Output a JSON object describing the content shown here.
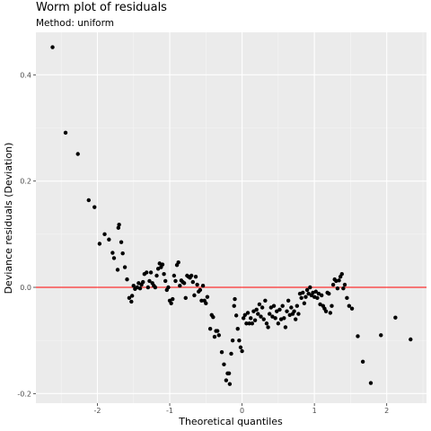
{
  "chart_data": {
    "type": "scatter",
    "title": "Worm plot of residuals",
    "subtitle": "Method: uniform",
    "xlabel": "Theoretical quantiles",
    "ylabel": "Deviance residuals (Deviation)",
    "xlim": [
      -2.85,
      2.55
    ],
    "ylim": [
      -0.218,
      0.48
    ],
    "x_ticks": [
      -2,
      -1,
      0,
      1,
      2
    ],
    "y_ticks": [
      -0.2,
      0.0,
      0.2,
      0.4
    ],
    "x_tick_labels": [
      "-2",
      "-1",
      "0",
      "1",
      "2"
    ],
    "y_tick_labels": [
      "-0.2",
      "0.0",
      "0.2",
      "0.4"
    ],
    "grid": true,
    "reference_line": {
      "y": 0,
      "color": "#ff0000"
    },
    "point_color": "#000000",
    "points": [
      [
        -2.62,
        0.452
      ],
      [
        -2.44,
        0.291
      ],
      [
        -2.27,
        0.251
      ],
      [
        -2.12,
        0.164
      ],
      [
        -2.04,
        0.151
      ],
      [
        -1.97,
        0.082
      ],
      [
        -1.9,
        0.1
      ],
      [
        -1.84,
        0.09
      ],
      [
        -1.79,
        0.065
      ],
      [
        -1.77,
        0.055
      ],
      [
        -1.72,
        0.033
      ],
      [
        -1.71,
        0.112
      ],
      [
        -1.7,
        0.118
      ],
      [
        -1.67,
        0.085
      ],
      [
        -1.65,
        0.064
      ],
      [
        -1.62,
        0.038
      ],
      [
        -1.59,
        0.015
      ],
      [
        -1.56,
        -0.02
      ],
      [
        -1.53,
        -0.027
      ],
      [
        -1.52,
        -0.016
      ],
      [
        -1.5,
        0.003
      ],
      [
        -1.48,
        -0.003
      ],
      [
        -1.45,
        0.0
      ],
      [
        -1.43,
        0.008
      ],
      [
        -1.41,
        -0.002
      ],
      [
        -1.39,
        0.005
      ],
      [
        -1.37,
        0.01
      ],
      [
        -1.35,
        0.025
      ],
      [
        -1.32,
        0.028
      ],
      [
        -1.3,
        0.0
      ],
      [
        -1.28,
        0.012
      ],
      [
        -1.26,
        0.028
      ],
      [
        -1.24,
        0.008
      ],
      [
        -1.22,
        0.003
      ],
      [
        -1.2,
        0.0
      ],
      [
        -1.18,
        0.022
      ],
      [
        -1.16,
        0.035
      ],
      [
        -1.14,
        0.045
      ],
      [
        -1.12,
        0.038
      ],
      [
        -1.1,
        0.043
      ],
      [
        -1.08,
        0.025
      ],
      [
        -1.06,
        0.012
      ],
      [
        -1.04,
        -0.005
      ],
      [
        -1.02,
        0.0
      ],
      [
        -1.0,
        -0.025
      ],
      [
        -0.98,
        -0.03
      ],
      [
        -0.96,
        -0.022
      ],
      [
        -0.94,
        0.022
      ],
      [
        -0.92,
        0.012
      ],
      [
        -0.9,
        0.042
      ],
      [
        -0.88,
        0.047
      ],
      [
        -0.86,
        0.003
      ],
      [
        -0.84,
        0.013
      ],
      [
        -0.82,
        0.01
      ],
      [
        -0.8,
        0.008
      ],
      [
        -0.78,
        -0.02
      ],
      [
        -0.76,
        0.022
      ],
      [
        -0.74,
        0.02
      ],
      [
        -0.72,
        0.018
      ],
      [
        -0.7,
        0.022
      ],
      [
        -0.68,
        0.01
      ],
      [
        -0.66,
        -0.015
      ],
      [
        -0.64,
        0.02
      ],
      [
        -0.62,
        0.005
      ],
      [
        -0.6,
        -0.008
      ],
      [
        -0.58,
        -0.005
      ],
      [
        -0.56,
        -0.025
      ],
      [
        -0.54,
        0.003
      ],
      [
        -0.52,
        -0.025
      ],
      [
        -0.5,
        -0.03
      ],
      [
        -0.48,
        -0.018
      ],
      [
        -0.44,
        -0.078
      ],
      [
        -0.42,
        -0.052
      ],
      [
        -0.4,
        -0.056
      ],
      [
        -0.38,
        -0.093
      ],
      [
        -0.36,
        -0.082
      ],
      [
        -0.34,
        -0.082
      ],
      [
        -0.32,
        -0.09
      ],
      [
        -0.28,
        -0.122
      ],
      [
        -0.25,
        -0.145
      ],
      [
        -0.22,
        -0.175
      ],
      [
        -0.2,
        -0.162
      ],
      [
        -0.18,
        -0.162
      ],
      [
        -0.17,
        -0.182
      ],
      [
        -0.15,
        -0.125
      ],
      [
        -0.13,
        -0.1
      ],
      [
        -0.11,
        -0.035
      ],
      [
        -0.1,
        -0.022
      ],
      [
        -0.08,
        -0.053
      ],
      [
        -0.06,
        -0.078
      ],
      [
        -0.04,
        -0.1
      ],
      [
        -0.02,
        -0.113
      ],
      [
        0.0,
        -0.12
      ],
      [
        0.02,
        -0.058
      ],
      [
        0.04,
        -0.052
      ],
      [
        0.06,
        -0.068
      ],
      [
        0.08,
        -0.048
      ],
      [
        0.1,
        -0.068
      ],
      [
        0.12,
        -0.058
      ],
      [
        0.14,
        -0.068
      ],
      [
        0.16,
        -0.045
      ],
      [
        0.18,
        -0.062
      ],
      [
        0.2,
        -0.042
      ],
      [
        0.22,
        -0.05
      ],
      [
        0.24,
        -0.032
      ],
      [
        0.26,
        -0.055
      ],
      [
        0.28,
        -0.038
      ],
      [
        0.3,
        -0.06
      ],
      [
        0.32,
        -0.025
      ],
      [
        0.34,
        -0.068
      ],
      [
        0.36,
        -0.075
      ],
      [
        0.38,
        -0.05
      ],
      [
        0.4,
        -0.038
      ],
      [
        0.42,
        -0.055
      ],
      [
        0.44,
        -0.035
      ],
      [
        0.46,
        -0.058
      ],
      [
        0.48,
        -0.045
      ],
      [
        0.5,
        -0.068
      ],
      [
        0.52,
        -0.042
      ],
      [
        0.54,
        -0.06
      ],
      [
        0.56,
        -0.035
      ],
      [
        0.58,
        -0.058
      ],
      [
        0.6,
        -0.075
      ],
      [
        0.62,
        -0.045
      ],
      [
        0.64,
        -0.025
      ],
      [
        0.66,
        -0.052
      ],
      [
        0.68,
        -0.038
      ],
      [
        0.7,
        -0.05
      ],
      [
        0.72,
        -0.045
      ],
      [
        0.74,
        -0.06
      ],
      [
        0.76,
        -0.035
      ],
      [
        0.78,
        -0.05
      ],
      [
        0.8,
        -0.012
      ],
      [
        0.82,
        -0.02
      ],
      [
        0.84,
        -0.01
      ],
      [
        0.86,
        -0.03
      ],
      [
        0.88,
        -0.018
      ],
      [
        0.9,
        -0.005
      ],
      [
        0.92,
        -0.012
      ],
      [
        0.94,
        0.0
      ],
      [
        0.96,
        -0.015
      ],
      [
        0.98,
        -0.01
      ],
      [
        1.0,
        -0.018
      ],
      [
        1.02,
        -0.008
      ],
      [
        1.04,
        -0.02
      ],
      [
        1.06,
        -0.012
      ],
      [
        1.08,
        -0.032
      ],
      [
        1.1,
        -0.015
      ],
      [
        1.12,
        -0.035
      ],
      [
        1.14,
        -0.04
      ],
      [
        1.16,
        -0.045
      ],
      [
        1.18,
        -0.01
      ],
      [
        1.2,
        -0.012
      ],
      [
        1.22,
        -0.048
      ],
      [
        1.24,
        -0.035
      ],
      [
        1.26,
        0.005
      ],
      [
        1.28,
        0.015
      ],
      [
        1.3,
        0.012
      ],
      [
        1.32,
        -0.002
      ],
      [
        1.34,
        0.013
      ],
      [
        1.36,
        0.02
      ],
      [
        1.38,
        0.025
      ],
      [
        1.4,
        -0.002
      ],
      [
        1.42,
        0.005
      ],
      [
        1.45,
        -0.02
      ],
      [
        1.48,
        -0.035
      ],
      [
        1.52,
        -0.04
      ],
      [
        1.6,
        -0.092
      ],
      [
        1.67,
        -0.14
      ],
      [
        1.78,
        -0.18
      ],
      [
        1.92,
        -0.09
      ],
      [
        2.12,
        -0.057
      ],
      [
        2.33,
        -0.098
      ]
    ]
  }
}
